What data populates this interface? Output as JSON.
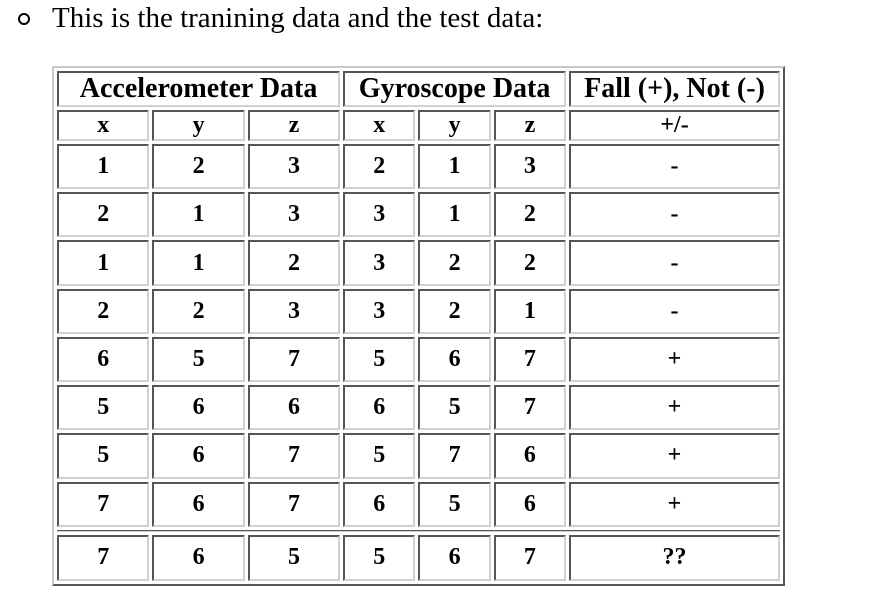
{
  "intro": {
    "text": "This is the tranining data and the test data:"
  },
  "table": {
    "groups": [
      {
        "label": "Accelerometer Data",
        "span": 3
      },
      {
        "label": "Gyroscope Data",
        "span": 3
      },
      {
        "label": "Fall (+), Not (-)",
        "span": 1
      }
    ],
    "columns": [
      "x",
      "y",
      "z",
      "x",
      "y",
      "z",
      "+/-"
    ],
    "training_rows": [
      [
        "1",
        "2",
        "3",
        "2",
        "1",
        "3",
        "-"
      ],
      [
        "2",
        "1",
        "3",
        "3",
        "1",
        "2",
        "-"
      ],
      [
        "1",
        "1",
        "2",
        "3",
        "2",
        "2",
        "-"
      ],
      [
        "2",
        "2",
        "3",
        "3",
        "2",
        "1",
        "-"
      ],
      [
        "6",
        "5",
        "7",
        "5",
        "6",
        "7",
        "+"
      ],
      [
        "5",
        "6",
        "6",
        "6",
        "5",
        "7",
        "+"
      ],
      [
        "5",
        "6",
        "7",
        "5",
        "7",
        "6",
        "+"
      ],
      [
        "7",
        "6",
        "7",
        "6",
        "5",
        "6",
        "+"
      ]
    ],
    "test_rows": [
      [
        "7",
        "6",
        "5",
        "5",
        "6",
        "7",
        "??"
      ]
    ]
  }
}
